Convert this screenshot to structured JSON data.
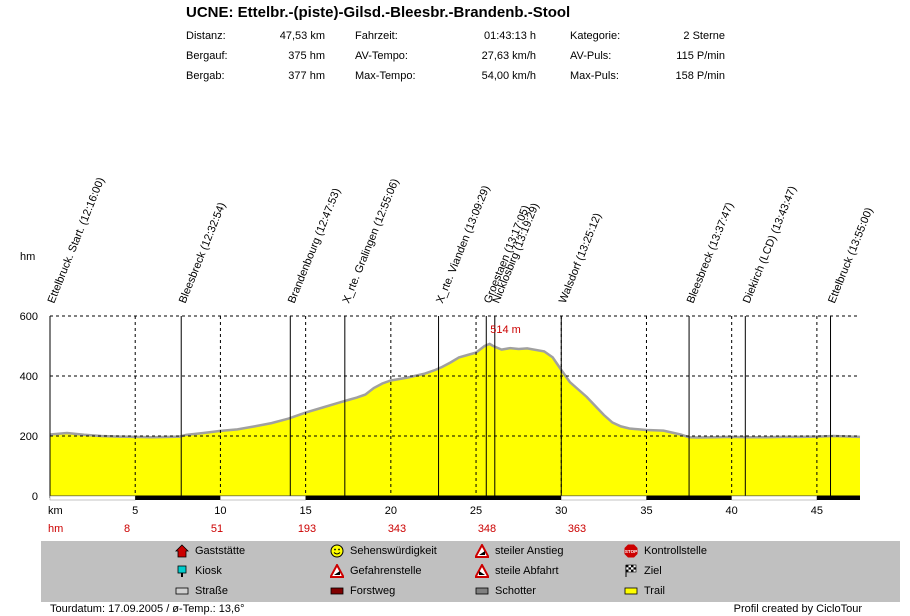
{
  "title": "UCNE: Ettelbr.-(piste)-Gilsd.-Bleesbr.-Brandenb.-Stool",
  "stats": [
    [
      {
        "label": "Distanz:",
        "value": "47,53 km"
      },
      {
        "label": "Fahrzeit:",
        "value": "01:43:13 h"
      },
      {
        "label": "Kategorie:",
        "value": "2 Sterne"
      }
    ],
    [
      {
        "label": "Bergauf:",
        "value": "375 hm"
      },
      {
        "label": "AV-Tempo:",
        "value": "27,63 km/h"
      },
      {
        "label": "AV-Puls:",
        "value": "115 P/min"
      }
    ],
    [
      {
        "label": "Bergab:",
        "value": "377 hm"
      },
      {
        "label": "Max-Tempo:",
        "value": "54,00 km/h"
      },
      {
        "label": "Max-Puls:",
        "value": "158 P/min"
      }
    ]
  ],
  "chart_data": {
    "type": "area",
    "xlabel": "km",
    "ylabel": "hm",
    "xlim": [
      0,
      47.53
    ],
    "ylim": [
      0,
      600
    ],
    "x_ticks": [
      5,
      10,
      15,
      20,
      25,
      30,
      35,
      40,
      45
    ],
    "y_ticks": [
      0,
      200,
      400,
      600
    ],
    "grid": true,
    "colors": {
      "fill": "#ffff00",
      "line": "#a0a0a0"
    },
    "max_label": "514 m",
    "max_point": [
      25.6,
      514
    ],
    "profile": [
      [
        0,
        205
      ],
      [
        1,
        210
      ],
      [
        2,
        204
      ],
      [
        3,
        200
      ],
      [
        4,
        198
      ],
      [
        5,
        197
      ],
      [
        6,
        196
      ],
      [
        7,
        197
      ],
      [
        7.6,
        198
      ],
      [
        8,
        204
      ],
      [
        9,
        210
      ],
      [
        10,
        217
      ],
      [
        11,
        222
      ],
      [
        12,
        232
      ],
      [
        13,
        243
      ],
      [
        14,
        258
      ],
      [
        14.5,
        268
      ],
      [
        15,
        278
      ],
      [
        16,
        295
      ],
      [
        17,
        312
      ],
      [
        17.5,
        320
      ],
      [
        18,
        328
      ],
      [
        18.5,
        338
      ],
      [
        19,
        360
      ],
      [
        19.5,
        375
      ],
      [
        20,
        385
      ],
      [
        21,
        395
      ],
      [
        22,
        408
      ],
      [
        22.6,
        420
      ],
      [
        23,
        430
      ],
      [
        23.5,
        445
      ],
      [
        24,
        462
      ],
      [
        24.5,
        470
      ],
      [
        25,
        478
      ],
      [
        25.5,
        500
      ],
      [
        25.8,
        507
      ],
      [
        26,
        500
      ],
      [
        26.5,
        488
      ],
      [
        27,
        493
      ],
      [
        27.5,
        490
      ],
      [
        28,
        492
      ],
      [
        29,
        482
      ],
      [
        29.5,
        462
      ],
      [
        30,
        420
      ],
      [
        30.5,
        380
      ],
      [
        31,
        355
      ],
      [
        31.5,
        330
      ],
      [
        32,
        300
      ],
      [
        32.5,
        270
      ],
      [
        33,
        245
      ],
      [
        33.5,
        232
      ],
      [
        34,
        225
      ],
      [
        35,
        220
      ],
      [
        36,
        218
      ],
      [
        37,
        205
      ],
      [
        37.5,
        196
      ],
      [
        38,
        195
      ],
      [
        39,
        196
      ],
      [
        40,
        197
      ],
      [
        41,
        196
      ],
      [
        42,
        196
      ],
      [
        43,
        197
      ],
      [
        44,
        197
      ],
      [
        45,
        198
      ],
      [
        46,
        200
      ],
      [
        47,
        198
      ],
      [
        47.53,
        197
      ]
    ],
    "waypoints": [
      {
        "label": "Ettelbruck. Start. (12:16:00)",
        "km": 0
      },
      {
        "label": "Bleesbreck (12:32:54)",
        "km": 7.7
      },
      {
        "label": "Brandenbourg (12:47:53)",
        "km": 14.1
      },
      {
        "label": "X_rte. Gralingen (12:55:06)",
        "km": 17.3
      },
      {
        "label": "X_rte. Vianden (13:09:29)",
        "km": 22.8
      },
      {
        "label": "Groestaen (13:17:05)",
        "km": 25.6
      },
      {
        "label": "Nicklosbirg (13:19:29)",
        "km": 26.1
      },
      {
        "label": "Walsdorf (13:25:12)",
        "km": 30.0
      },
      {
        "label": "Bleesbreck (13:37:47)",
        "km": 37.5
      },
      {
        "label": "Diekirch (LCD) (13:43:47)",
        "km": 40.8
      },
      {
        "label": "Ettelbruck (13:55:00)",
        "km": 45.8
      }
    ],
    "hm_markers": [
      {
        "km": 5,
        "value": "8"
      },
      {
        "km": 10,
        "value": "51"
      },
      {
        "km": 15,
        "value": "193"
      },
      {
        "km": 20,
        "value": "343"
      },
      {
        "km": 25,
        "value": "348"
      },
      {
        "km": 30,
        "value": "363"
      }
    ],
    "surface": [
      {
        "from": 0,
        "to": 5,
        "type": "road"
      },
      {
        "from": 5,
        "to": 10,
        "type": "forest"
      },
      {
        "from": 10,
        "to": 15,
        "type": "road"
      },
      {
        "from": 15,
        "to": 30,
        "type": "forest"
      },
      {
        "from": 30,
        "to": 35,
        "type": "road"
      },
      {
        "from": 35,
        "to": 40,
        "type": "forest"
      },
      {
        "from": 40,
        "to": 45,
        "type": "road"
      },
      {
        "from": 45,
        "to": 47.53,
        "type": "forest"
      }
    ]
  },
  "legend": [
    {
      "label": "Gaststätte",
      "icon": "house-icon",
      "color": "#cc0000"
    },
    {
      "label": "Sehenswürdigkeit",
      "icon": "smiley-icon",
      "color": "#ffff00"
    },
    {
      "label": "steiler Anstieg",
      "icon": "steep-climb-icon",
      "color": "#cc0000"
    },
    {
      "label": "Kontrollstelle",
      "icon": "stop-icon",
      "color": "#cc0000"
    },
    {
      "label": "Kiosk",
      "icon": "kiosk-icon",
      "color": "#00cccc"
    },
    {
      "label": "Gefahrenstelle",
      "icon": "warning-icon",
      "color": "#cc0000"
    },
    {
      "label": "steile Abfahrt",
      "icon": "steep-descent-icon",
      "color": "#cc0000"
    },
    {
      "label": "Ziel",
      "icon": "finish-flag-icon",
      "color": "#000000"
    },
    {
      "label": "Straße",
      "icon": "road-swatch-icon",
      "color": "#d0d0d0"
    },
    {
      "label": "Forstweg",
      "icon": "forest-swatch-icon",
      "color": "#800000"
    },
    {
      "label": "Schotter",
      "icon": "gravel-swatch-icon",
      "color": "#808080"
    },
    {
      "label": "Trail",
      "icon": "trail-swatch-icon",
      "color": "#ffff00"
    }
  ],
  "footer": {
    "left": "Tourdatum: 17.09.2005  /  ø-Temp.: 13,6°",
    "right": "Profil created by CicloTour"
  }
}
